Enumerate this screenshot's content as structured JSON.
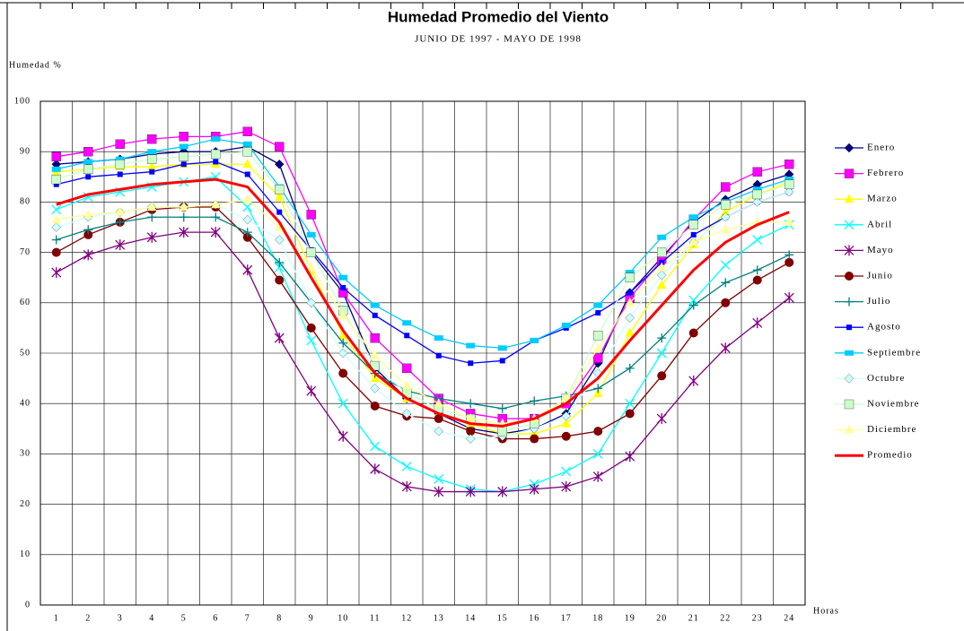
{
  "chart_data": {
    "type": "line",
    "title": "Humedad Promedio del Viento",
    "subtitle": "JUNIO DE 1997 - MAYO DE 1998",
    "y_label": "Humedad %",
    "x_label": "Horas",
    "categories": [
      "1",
      "2",
      "3",
      "4",
      "5",
      "6",
      "7",
      "8",
      "9",
      "10",
      "11",
      "12",
      "13",
      "14",
      "15",
      "16",
      "17",
      "18",
      "19",
      "20",
      "21",
      "22",
      "23",
      "24"
    ],
    "ylim": [
      0,
      100
    ],
    "yticks": [
      0,
      10,
      20,
      30,
      40,
      50,
      60,
      70,
      80,
      90,
      100
    ],
    "grid": true,
    "legend": "right",
    "series": [
      {
        "name": "Enero",
        "color": "#000080",
        "marker": "diamond",
        "values": [
          87.5,
          88,
          88.5,
          89.5,
          90,
          90,
          91,
          87.5,
          70,
          62,
          47,
          41,
          38,
          35,
          34,
          35,
          38,
          48,
          62,
          69,
          76,
          80.5,
          83.5,
          85.5
        ]
      },
      {
        "name": "Febrero",
        "color": "#ff00ff",
        "marker": "square",
        "values": [
          89,
          90,
          91.5,
          92.5,
          93,
          93,
          94,
          91,
          77.5,
          62,
          53,
          47,
          41,
          38,
          37,
          37,
          40,
          49,
          61,
          68.5,
          76.5,
          83,
          86,
          87.5
        ]
      },
      {
        "name": "Marzo",
        "color": "#ffff00",
        "marker": "triangle",
        "values": [
          86,
          86.5,
          87,
          87,
          87.5,
          87.5,
          87.5,
          81,
          66.5,
          53.5,
          45,
          41,
          38,
          36,
          34,
          34,
          36,
          42,
          54,
          63.5,
          71.5,
          78,
          81.5,
          84
        ]
      },
      {
        "name": "Abril",
        "color": "#00ffff",
        "marker": "x",
        "values": [
          78.5,
          81,
          82,
          83,
          84,
          85,
          79,
          67,
          52.5,
          40,
          31.5,
          27.5,
          25,
          23,
          22.5,
          24,
          26.5,
          30,
          40,
          50,
          60.5,
          67.5,
          72.5,
          75.5
        ]
      },
      {
        "name": "Mayo",
        "color": "#800080",
        "marker": "star",
        "values": [
          66,
          69.5,
          71.5,
          73,
          74,
          74,
          66.5,
          53,
          42.5,
          33.5,
          27,
          23.5,
          22.5,
          22.5,
          22.5,
          23,
          23.5,
          25.5,
          29.5,
          37,
          44.5,
          51,
          56,
          61
        ]
      },
      {
        "name": "Junio",
        "color": "#800000",
        "marker": "circle",
        "values": [
          70,
          73.5,
          76,
          78.5,
          79,
          79,
          73,
          64.5,
          55,
          46,
          39.5,
          37.5,
          37,
          34.5,
          33,
          33,
          33.5,
          34.5,
          38,
          45.5,
          54,
          60,
          64.5,
          68
        ]
      },
      {
        "name": "Julio",
        "color": "#008080",
        "marker": "plus",
        "values": [
          72.5,
          74.5,
          76,
          77,
          77,
          77,
          74,
          68,
          60,
          52,
          46,
          42.5,
          41,
          40,
          39,
          40.5,
          41.5,
          43,
          47,
          53,
          59.5,
          64,
          66.5,
          69.5
        ]
      },
      {
        "name": "Agosto",
        "color": "#0000ff",
        "marker": "smallsquare",
        "values": [
          83.5,
          85,
          85.5,
          86,
          87.5,
          88,
          85.5,
          78,
          70.5,
          63,
          57.5,
          53.5,
          49.5,
          48,
          48.5,
          52.5,
          55,
          58,
          62,
          68,
          73.5,
          77,
          80,
          82
        ]
      },
      {
        "name": "Septiembre",
        "color": "#00ccff",
        "marker": "bar",
        "values": [
          86.5,
          88,
          88.5,
          90,
          91,
          92.5,
          91.5,
          83,
          73.5,
          65,
          59.5,
          56,
          53,
          51.5,
          51,
          52.5,
          55.5,
          59.5,
          66,
          73,
          77,
          80,
          82.5,
          84.5
        ]
      },
      {
        "name": "Octubre",
        "color": "#ccffff",
        "marker": "diamond",
        "values": [
          75,
          77,
          78,
          79,
          79,
          79.5,
          76.5,
          72.5,
          60,
          50,
          43,
          38,
          34.5,
          33,
          33.5,
          35,
          37.5,
          46,
          57,
          65.5,
          72,
          77,
          80,
          82
        ]
      },
      {
        "name": "Noviembre",
        "color": "#ccffcc",
        "marker": "square",
        "values": [
          84.5,
          86.5,
          87.5,
          88.5,
          89,
          89.5,
          90,
          82.5,
          70,
          58.5,
          47.5,
          42,
          39,
          37,
          34.5,
          36,
          41,
          53.5,
          65,
          70,
          75.5,
          79.5,
          81.5,
          83.5
        ]
      },
      {
        "name": "Diciembre",
        "color": "#ffff99",
        "marker": "triangle",
        "values": [
          76.5,
          77.5,
          78,
          79,
          79,
          79.5,
          80.5,
          75,
          67,
          57.5,
          49.5,
          43.5,
          40,
          37,
          36,
          37,
          41,
          51,
          60,
          67,
          72,
          74.5,
          76,
          76
        ]
      },
      {
        "name": "Promedio",
        "color": "#ff0000",
        "marker": "none",
        "width": 3,
        "values": [
          79.5,
          81.5,
          82.5,
          83.5,
          84,
          84.5,
          83,
          76,
          65,
          54.5,
          46,
          41,
          38,
          36,
          35.5,
          37,
          40,
          45,
          52.5,
          59.5,
          66.5,
          72,
          75.5,
          78
        ]
      }
    ]
  }
}
